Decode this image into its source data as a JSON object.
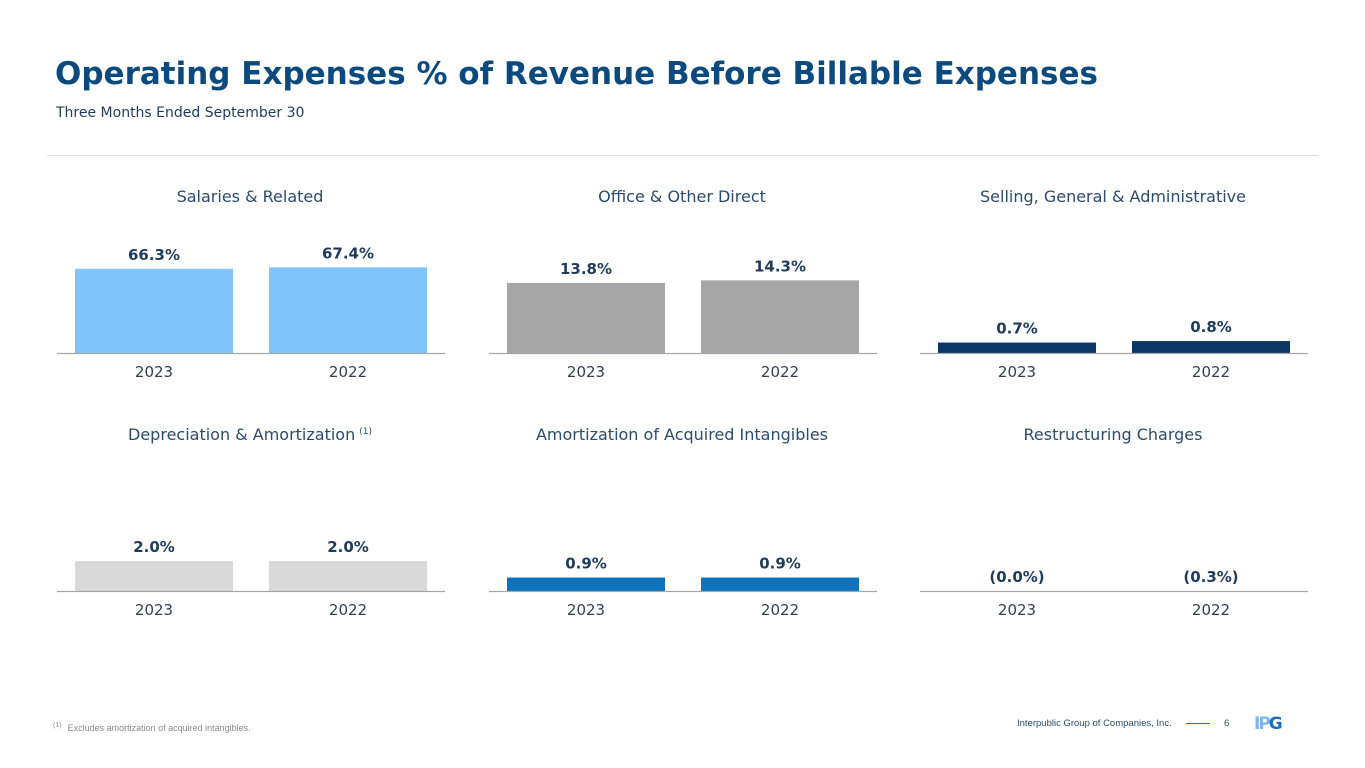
{
  "header": {
    "title": "Operating Expenses % of Revenue Before Billable Expenses",
    "subtitle": "Three Months Ended September 30"
  },
  "footer": {
    "footnote_mark": "(1)",
    "footnote_text": "Excludes amortization of acquired intangibles.",
    "company": "Interpublic Group of Companies, Inc.",
    "page_number": "6",
    "logo": {
      "part1": "IP",
      "part2": "G"
    }
  },
  "chart_data": [
    {
      "type": "bar",
      "title": "Salaries & Related",
      "footnote_ref": "",
      "categories": [
        "2023",
        "2022"
      ],
      "values": [
        66.3,
        67.4
      ],
      "labels": [
        "66.3%",
        "67.4%"
      ],
      "color": "#7fc4fb",
      "ylim": [
        0,
        100
      ],
      "xlabel": "",
      "ylabel": "",
      "grid": false
    },
    {
      "type": "bar",
      "title": "Office & Other Direct",
      "footnote_ref": "",
      "categories": [
        "2023",
        "2022"
      ],
      "values": [
        13.8,
        14.3
      ],
      "labels": [
        "13.8%",
        "14.3%"
      ],
      "color": "#a6a6a6",
      "ylim": [
        0,
        25
      ],
      "xlabel": "",
      "ylabel": "",
      "grid": false
    },
    {
      "type": "bar",
      "title": "Selling, General & Administrative",
      "footnote_ref": "",
      "categories": [
        "2023",
        "2022"
      ],
      "values": [
        0.7,
        0.8
      ],
      "labels": [
        "0.7%",
        "0.8%"
      ],
      "color": "#0a3766",
      "ylim": [
        0,
        8.5
      ],
      "xlabel": "",
      "ylabel": "",
      "grid": false
    },
    {
      "type": "bar",
      "title": "Depreciation & Amortization",
      "footnote_ref": "(1)",
      "categories": [
        "2023",
        "2022"
      ],
      "values": [
        2.0,
        2.0
      ],
      "labels": [
        "2.0%",
        "2.0%"
      ],
      "color": "#d9d9d9",
      "ylim": [
        0,
        8.5
      ],
      "xlabel": "",
      "ylabel": "",
      "grid": false
    },
    {
      "type": "bar",
      "title": "Amortization of Acquired Intangibles",
      "footnote_ref": "",
      "categories": [
        "2023",
        "2022"
      ],
      "values": [
        0.9,
        0.9
      ],
      "labels": [
        "0.9%",
        "0.9%"
      ],
      "color": "#0e72bd",
      "ylim": [
        0,
        8.5
      ],
      "xlabel": "",
      "ylabel": "",
      "grid": false
    },
    {
      "type": "bar",
      "title": "Restructuring Charges",
      "footnote_ref": "",
      "categories": [
        "2023",
        "2022"
      ],
      "values": [
        0.0,
        -0.3
      ],
      "labels": [
        "(0.0%)",
        "(0.3%)"
      ],
      "color": "#ffffff",
      "ylim": [
        0,
        8.5
      ],
      "xlabel": "",
      "ylabel": "",
      "grid": false
    }
  ],
  "style": {
    "label_color": "#1f3b5c",
    "axis_color": "#a6a6a6",
    "tick_color": "#333f4f"
  }
}
